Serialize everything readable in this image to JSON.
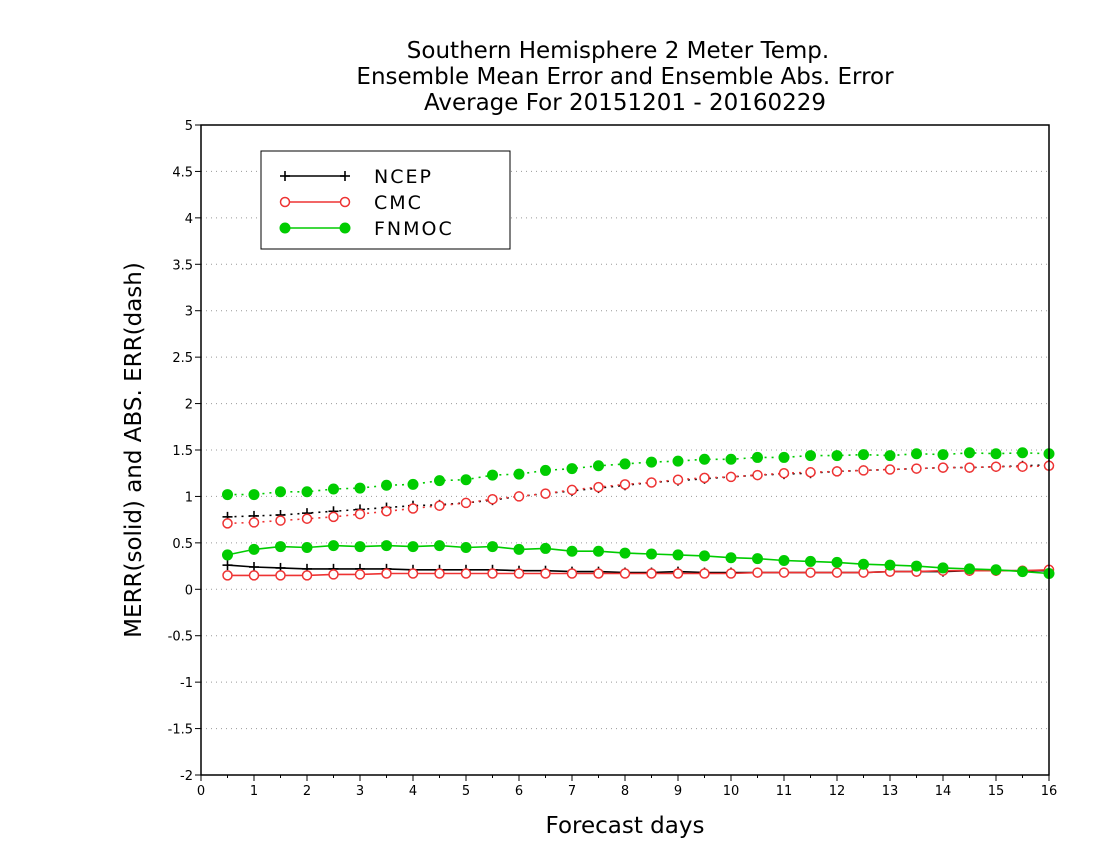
{
  "chart_data": {
    "type": "line",
    "title_lines": [
      "Southern Hemisphere 2 Meter Temp.",
      "Ensemble Mean Error and Ensemble Abs. Error",
      "Average For 20151201 - 20160229"
    ],
    "xlabel": "Forecast days",
    "ylabel": "MERR(solid) and ABS. ERR(dash)",
    "xlim": [
      0,
      16
    ],
    "ylim": [
      -2,
      5
    ],
    "x_ticks": [
      "0",
      "1",
      "2",
      "3",
      "4",
      "5",
      "6",
      "7",
      "8",
      "9",
      "10",
      "11",
      "12",
      "13",
      "14",
      "15",
      "16"
    ],
    "y_ticks": [
      "5",
      "4.5",
      "4",
      "3.5",
      "3",
      "2.5",
      "2",
      "1.5",
      "1",
      "0.5",
      "0",
      "-0.5",
      "-1",
      "-1.5",
      "-2"
    ],
    "grid": "horizontal dotted",
    "legend_position": "top-left",
    "x": [
      0.5,
      1,
      1.5,
      2,
      2.5,
      3,
      3.5,
      4,
      4.5,
      5,
      5.5,
      6,
      6.5,
      7,
      7.5,
      8,
      8.5,
      9,
      9.5,
      10,
      10.5,
      11,
      11.5,
      12,
      12.5,
      13,
      13.5,
      14,
      14.5,
      15,
      15.5,
      16
    ],
    "series": [
      {
        "name": "NCEP",
        "color": "#000000",
        "marker": "plus",
        "merr": [
          0.26,
          0.24,
          0.23,
          0.22,
          0.22,
          0.22,
          0.22,
          0.21,
          0.21,
          0.21,
          0.21,
          0.2,
          0.2,
          0.19,
          0.19,
          0.18,
          0.18,
          0.19,
          0.18,
          0.18,
          0.18,
          0.18,
          0.18,
          0.18,
          0.18,
          0.19,
          0.19,
          0.19,
          0.2,
          0.2,
          0.2,
          0.2
        ],
        "abs_err": [
          0.78,
          0.79,
          0.8,
          0.82,
          0.84,
          0.86,
          0.88,
          0.9,
          0.91,
          0.93,
          0.96,
          1.0,
          1.03,
          1.06,
          1.09,
          1.12,
          1.15,
          1.17,
          1.19,
          1.21,
          1.23,
          1.24,
          1.25,
          1.27,
          1.28,
          1.29,
          1.3,
          1.31,
          1.31,
          1.32,
          1.33,
          1.34
        ]
      },
      {
        "name": "CMC",
        "color": "#ee3333",
        "marker": "open-circle",
        "merr": [
          0.15,
          0.15,
          0.15,
          0.15,
          0.16,
          0.16,
          0.17,
          0.17,
          0.17,
          0.17,
          0.17,
          0.17,
          0.17,
          0.17,
          0.17,
          0.17,
          0.17,
          0.17,
          0.17,
          0.17,
          0.18,
          0.18,
          0.18,
          0.18,
          0.18,
          0.19,
          0.19,
          0.2,
          0.2,
          0.2,
          0.2,
          0.21
        ],
        "abs_err": [
          0.71,
          0.72,
          0.74,
          0.76,
          0.78,
          0.81,
          0.84,
          0.87,
          0.9,
          0.93,
          0.97,
          1.0,
          1.03,
          1.07,
          1.1,
          1.13,
          1.15,
          1.18,
          1.2,
          1.21,
          1.23,
          1.25,
          1.26,
          1.27,
          1.28,
          1.29,
          1.3,
          1.31,
          1.31,
          1.32,
          1.32,
          1.33
        ]
      },
      {
        "name": "FNMOC",
        "color": "#00cc00",
        "marker": "filled-circle",
        "merr": [
          0.37,
          0.43,
          0.46,
          0.45,
          0.47,
          0.46,
          0.47,
          0.46,
          0.47,
          0.45,
          0.46,
          0.43,
          0.44,
          0.41,
          0.41,
          0.39,
          0.38,
          0.37,
          0.36,
          0.34,
          0.33,
          0.31,
          0.3,
          0.29,
          0.27,
          0.26,
          0.25,
          0.23,
          0.22,
          0.21,
          0.19,
          0.17
        ],
        "abs_err": [
          1.02,
          1.02,
          1.05,
          1.05,
          1.08,
          1.09,
          1.12,
          1.13,
          1.17,
          1.18,
          1.23,
          1.24,
          1.28,
          1.3,
          1.33,
          1.35,
          1.37,
          1.38,
          1.4,
          1.4,
          1.42,
          1.42,
          1.44,
          1.44,
          1.45,
          1.44,
          1.46,
          1.45,
          1.47,
          1.46,
          1.47,
          1.46
        ]
      }
    ]
  }
}
